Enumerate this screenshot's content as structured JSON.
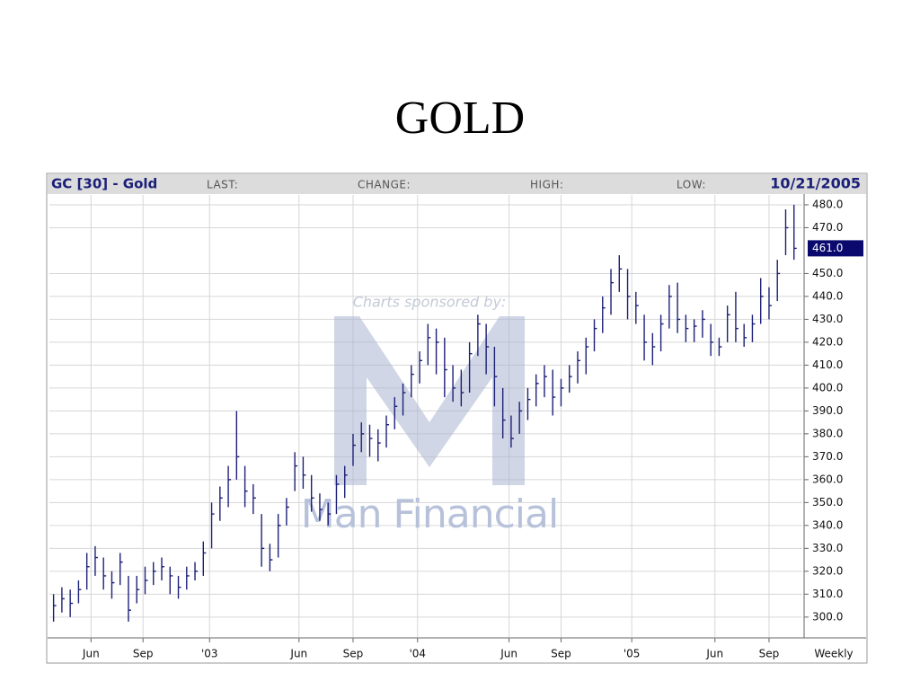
{
  "chart_data": {
    "type": "ohlc",
    "title": "GOLD",
    "symbol_label": "GC [30] - Gold",
    "header_fields": [
      "LAST:",
      "CHANGE:",
      "HIGH:",
      "LOW:"
    ],
    "date": "10/21/2005",
    "sponsor_text": "Charts sponsored by:",
    "sponsor_name": "Man Financial",
    "period_label": "Weekly",
    "color": "#1c2078",
    "grid": true,
    "x": [
      2002.25,
      2002.29,
      2002.33,
      2002.37,
      2002.41,
      2002.45,
      2002.49,
      2002.53,
      2002.57,
      2002.61,
      2002.65,
      2002.69,
      2002.73,
      2002.77,
      2002.81,
      2002.85,
      2002.89,
      2002.93,
      2002.97,
      2003.01,
      2003.05,
      2003.09,
      2003.13,
      2003.17,
      2003.21,
      2003.25,
      2003.29,
      2003.33,
      2003.37,
      2003.41,
      2003.45,
      2003.49,
      2003.53,
      2003.57,
      2003.61,
      2003.65,
      2003.69,
      2003.73,
      2003.77,
      2003.81,
      2003.85,
      2003.89,
      2003.93,
      2003.97,
      2004.01,
      2004.05,
      2004.09,
      2004.13,
      2004.17,
      2004.21,
      2004.25,
      2004.29,
      2004.33,
      2004.37,
      2004.41,
      2004.45,
      2004.49,
      2004.53,
      2004.57,
      2004.61,
      2004.65,
      2004.69,
      2004.73,
      2004.77,
      2004.81,
      2004.85,
      2004.89,
      2004.93,
      2004.97,
      2005.01,
      2005.05,
      2005.09,
      2005.13,
      2005.17,
      2005.21,
      2005.25,
      2005.29,
      2005.33,
      2005.37,
      2005.41,
      2005.45,
      2005.49,
      2005.53,
      2005.57,
      2005.61,
      2005.65,
      2005.69,
      2005.73,
      2005.77,
      2005.81
    ],
    "high": [
      310,
      313,
      312,
      316,
      328,
      331,
      326,
      320,
      328,
      318,
      318,
      322,
      324,
      326,
      322,
      318,
      322,
      324,
      333,
      350,
      357,
      366,
      390,
      366,
      358,
      345,
      332,
      345,
      352,
      372,
      370,
      362,
      354,
      350,
      362,
      366,
      380,
      385,
      384,
      382,
      388,
      396,
      402,
      410,
      416,
      428,
      426,
      422,
      410,
      408,
      420,
      432,
      428,
      418,
      400,
      388,
      394,
      400,
      406,
      410,
      408,
      404,
      410,
      416,
      422,
      430,
      440,
      452,
      458,
      452,
      442,
      432,
      424,
      432,
      445,
      446,
      432,
      430,
      434,
      428,
      422,
      436,
      442,
      428,
      432,
      448,
      444,
      456,
      478,
      480
    ],
    "low": [
      298,
      302,
      300,
      306,
      312,
      318,
      312,
      308,
      314,
      298,
      306,
      310,
      314,
      316,
      310,
      308,
      312,
      316,
      318,
      330,
      342,
      348,
      360,
      348,
      345,
      322,
      320,
      326,
      340,
      355,
      356,
      346,
      342,
      340,
      345,
      352,
      366,
      372,
      370,
      368,
      374,
      382,
      388,
      396,
      402,
      410,
      406,
      396,
      394,
      392,
      398,
      414,
      406,
      392,
      378,
      374,
      380,
      386,
      392,
      396,
      388,
      392,
      398,
      402,
      406,
      416,
      424,
      432,
      442,
      430,
      428,
      412,
      410,
      416,
      426,
      424,
      420,
      420,
      422,
      414,
      414,
      420,
      420,
      418,
      420,
      428,
      430,
      438,
      458,
      456
    ],
    "close": [
      305,
      308,
      306,
      312,
      322,
      326,
      318,
      315,
      324,
      303,
      312,
      316,
      320,
      322,
      318,
      313,
      318,
      320,
      328,
      345,
      352,
      360,
      370,
      355,
      352,
      330,
      325,
      340,
      348,
      366,
      362,
      352,
      347,
      345,
      358,
      362,
      375,
      380,
      378,
      376,
      384,
      392,
      398,
      406,
      412,
      422,
      420,
      408,
      400,
      398,
      415,
      428,
      418,
      405,
      386,
      378,
      390,
      395,
      402,
      405,
      396,
      400,
      405,
      412,
      418,
      426,
      435,
      446,
      452,
      440,
      436,
      420,
      418,
      428,
      440,
      430,
      426,
      427,
      430,
      420,
      418,
      432,
      426,
      422,
      428,
      440,
      436,
      450,
      470,
      461
    ],
    "last_label": {
      "value": 461,
      "label": "461.0"
    },
    "xlim": [
      2002.23,
      2005.85
    ],
    "xticks": [
      {
        "value": 2002.43,
        "label": "Jun"
      },
      {
        "value": 2002.68,
        "label": "Sep"
      },
      {
        "value": 2003.0,
        "label": "'03"
      },
      {
        "value": 2003.43,
        "label": "Jun"
      },
      {
        "value": 2003.69,
        "label": "Sep"
      },
      {
        "value": 2004.0,
        "label": "'04"
      },
      {
        "value": 2004.44,
        "label": "Jun"
      },
      {
        "value": 2004.69,
        "label": "Sep"
      },
      {
        "value": 2005.03,
        "label": "'05"
      },
      {
        "value": 2005.43,
        "label": "Jun"
      },
      {
        "value": 2005.69,
        "label": "Sep"
      }
    ],
    "ylim": [
      291.3,
      484.3
    ],
    "yticks": [
      {
        "value": 300,
        "label": "300.0"
      },
      {
        "value": 310,
        "label": "310.0"
      },
      {
        "value": 320,
        "label": "320.0"
      },
      {
        "value": 330,
        "label": "330.0"
      },
      {
        "value": 340,
        "label": "340.0"
      },
      {
        "value": 350,
        "label": "350.0"
      },
      {
        "value": 360,
        "label": "360.0"
      },
      {
        "value": 370,
        "label": "370.0"
      },
      {
        "value": 380,
        "label": "380.0"
      },
      {
        "value": 390,
        "label": "390.0"
      },
      {
        "value": 400,
        "label": "400.0"
      },
      {
        "value": 410,
        "label": "410.0"
      },
      {
        "value": 420,
        "label": "420.0"
      },
      {
        "value": 430,
        "label": "430.0"
      },
      {
        "value": 440,
        "label": "440.0"
      },
      {
        "value": 450,
        "label": "450.0"
      },
      {
        "value": 470,
        "label": "470.0"
      },
      {
        "value": 480,
        "label": "480.0"
      }
    ]
  }
}
